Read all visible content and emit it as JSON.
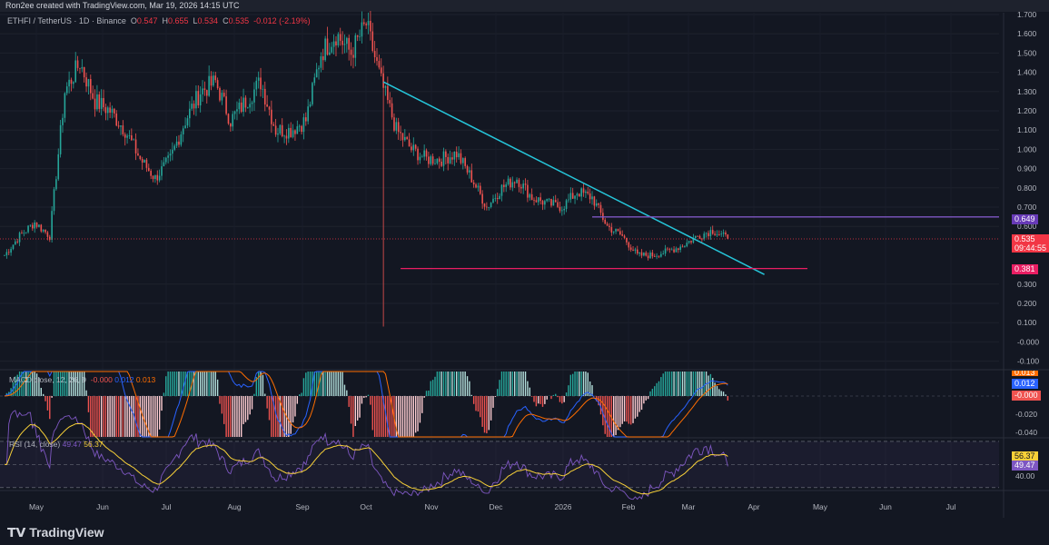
{
  "header": {
    "attribution": "Ron2ee created with TradingView.com, Mar 19, 2026 14:15 UTC"
  },
  "legend": {
    "symbol": "ETHFI / TetherUS · 1D · Binance",
    "o_label": "O",
    "o": "0.547",
    "h_label": "H",
    "h": "0.655",
    "l_label": "L",
    "l": "0.534",
    "c_label": "C",
    "c": "0.535",
    "change": "-0.012 (-2.19%)"
  },
  "macd": {
    "label": "MACD close, 12, 26, 9",
    "hist": "-0.000",
    "macd": "0.012",
    "signal": "0.013"
  },
  "rsi": {
    "label": "RSI (14, close)",
    "rsi": "49.47",
    "ma": "56.37"
  },
  "tags": {
    "resistance": "0.649",
    "price": "0.535",
    "countdown": "09:44:55",
    "support": "0.381",
    "macd_signal": "0.013",
    "macd_line": "0.012",
    "macd_hist": "-0.000",
    "rsi_ma": "56.37",
    "rsi": "49.47"
  },
  "footer": {
    "logo": "TradingView"
  },
  "colors": {
    "up": "#26a69a",
    "down": "#ef5350",
    "trendline": "#26c6da",
    "resistance": "#7e57c2",
    "support": "#e91e63",
    "macd": "#2962ff",
    "signal": "#ff6d00",
    "rsi": "#7e57c2",
    "rsi_ma": "#f7d038"
  },
  "chart_data": {
    "type": "candlestick",
    "start_date": "2025-04-17",
    "weekly_closes": [
      0.45,
      0.55,
      0.62,
      0.55,
      1.3,
      1.45,
      1.25,
      1.2,
      1.1,
      0.95,
      0.85,
      0.95,
      1.15,
      1.3,
      1.35,
      1.15,
      1.25,
      1.35,
      1.1,
      1.1,
      1.15,
      1.5,
      1.6,
      1.5,
      1.65,
      1.35,
      1.1,
      1.0,
      0.95,
      0.95,
      0.98,
      0.85,
      0.7,
      0.8,
      0.85,
      0.75,
      0.72,
      0.7,
      0.78,
      0.75,
      0.6,
      0.55,
      0.45,
      0.45,
      0.47,
      0.5,
      0.55,
      0.58,
      0.535
    ],
    "crash_wick": {
      "date": "2025-10-10",
      "low": 0.08
    },
    "y_ticks": [
      "1.700",
      "1.600",
      "1.500",
      "1.400",
      "1.300",
      "1.200",
      "1.100",
      "1.000",
      "0.900",
      "0.800",
      "0.700",
      "0.600",
      "0.300",
      "0.200",
      "0.100",
      "-0.000",
      "-0.100"
    ],
    "ylim": [
      -0.15,
      1.72
    ],
    "x_ticks": [
      "May",
      "Jun",
      "Jul",
      "Aug",
      "Sep",
      "Oct",
      "Nov",
      "Dec",
      "2026",
      "Feb",
      "Mar",
      "Apr",
      "May",
      "Jun",
      "Jul"
    ],
    "macd_ticks": [
      "-0.020",
      "-0.040"
    ],
    "rsi_ticks": [
      "40.00"
    ],
    "trendline": {
      "from": {
        "date": "2025-10-10",
        "value": 1.35
      },
      "to": {
        "date": "2026-04-05",
        "value": 0.35
      }
    },
    "resistance": {
      "value": 0.649,
      "from": "2026-01-15"
    },
    "support": {
      "value": 0.381,
      "from": "2025-10-18",
      "to": "2026-04-25"
    }
  }
}
